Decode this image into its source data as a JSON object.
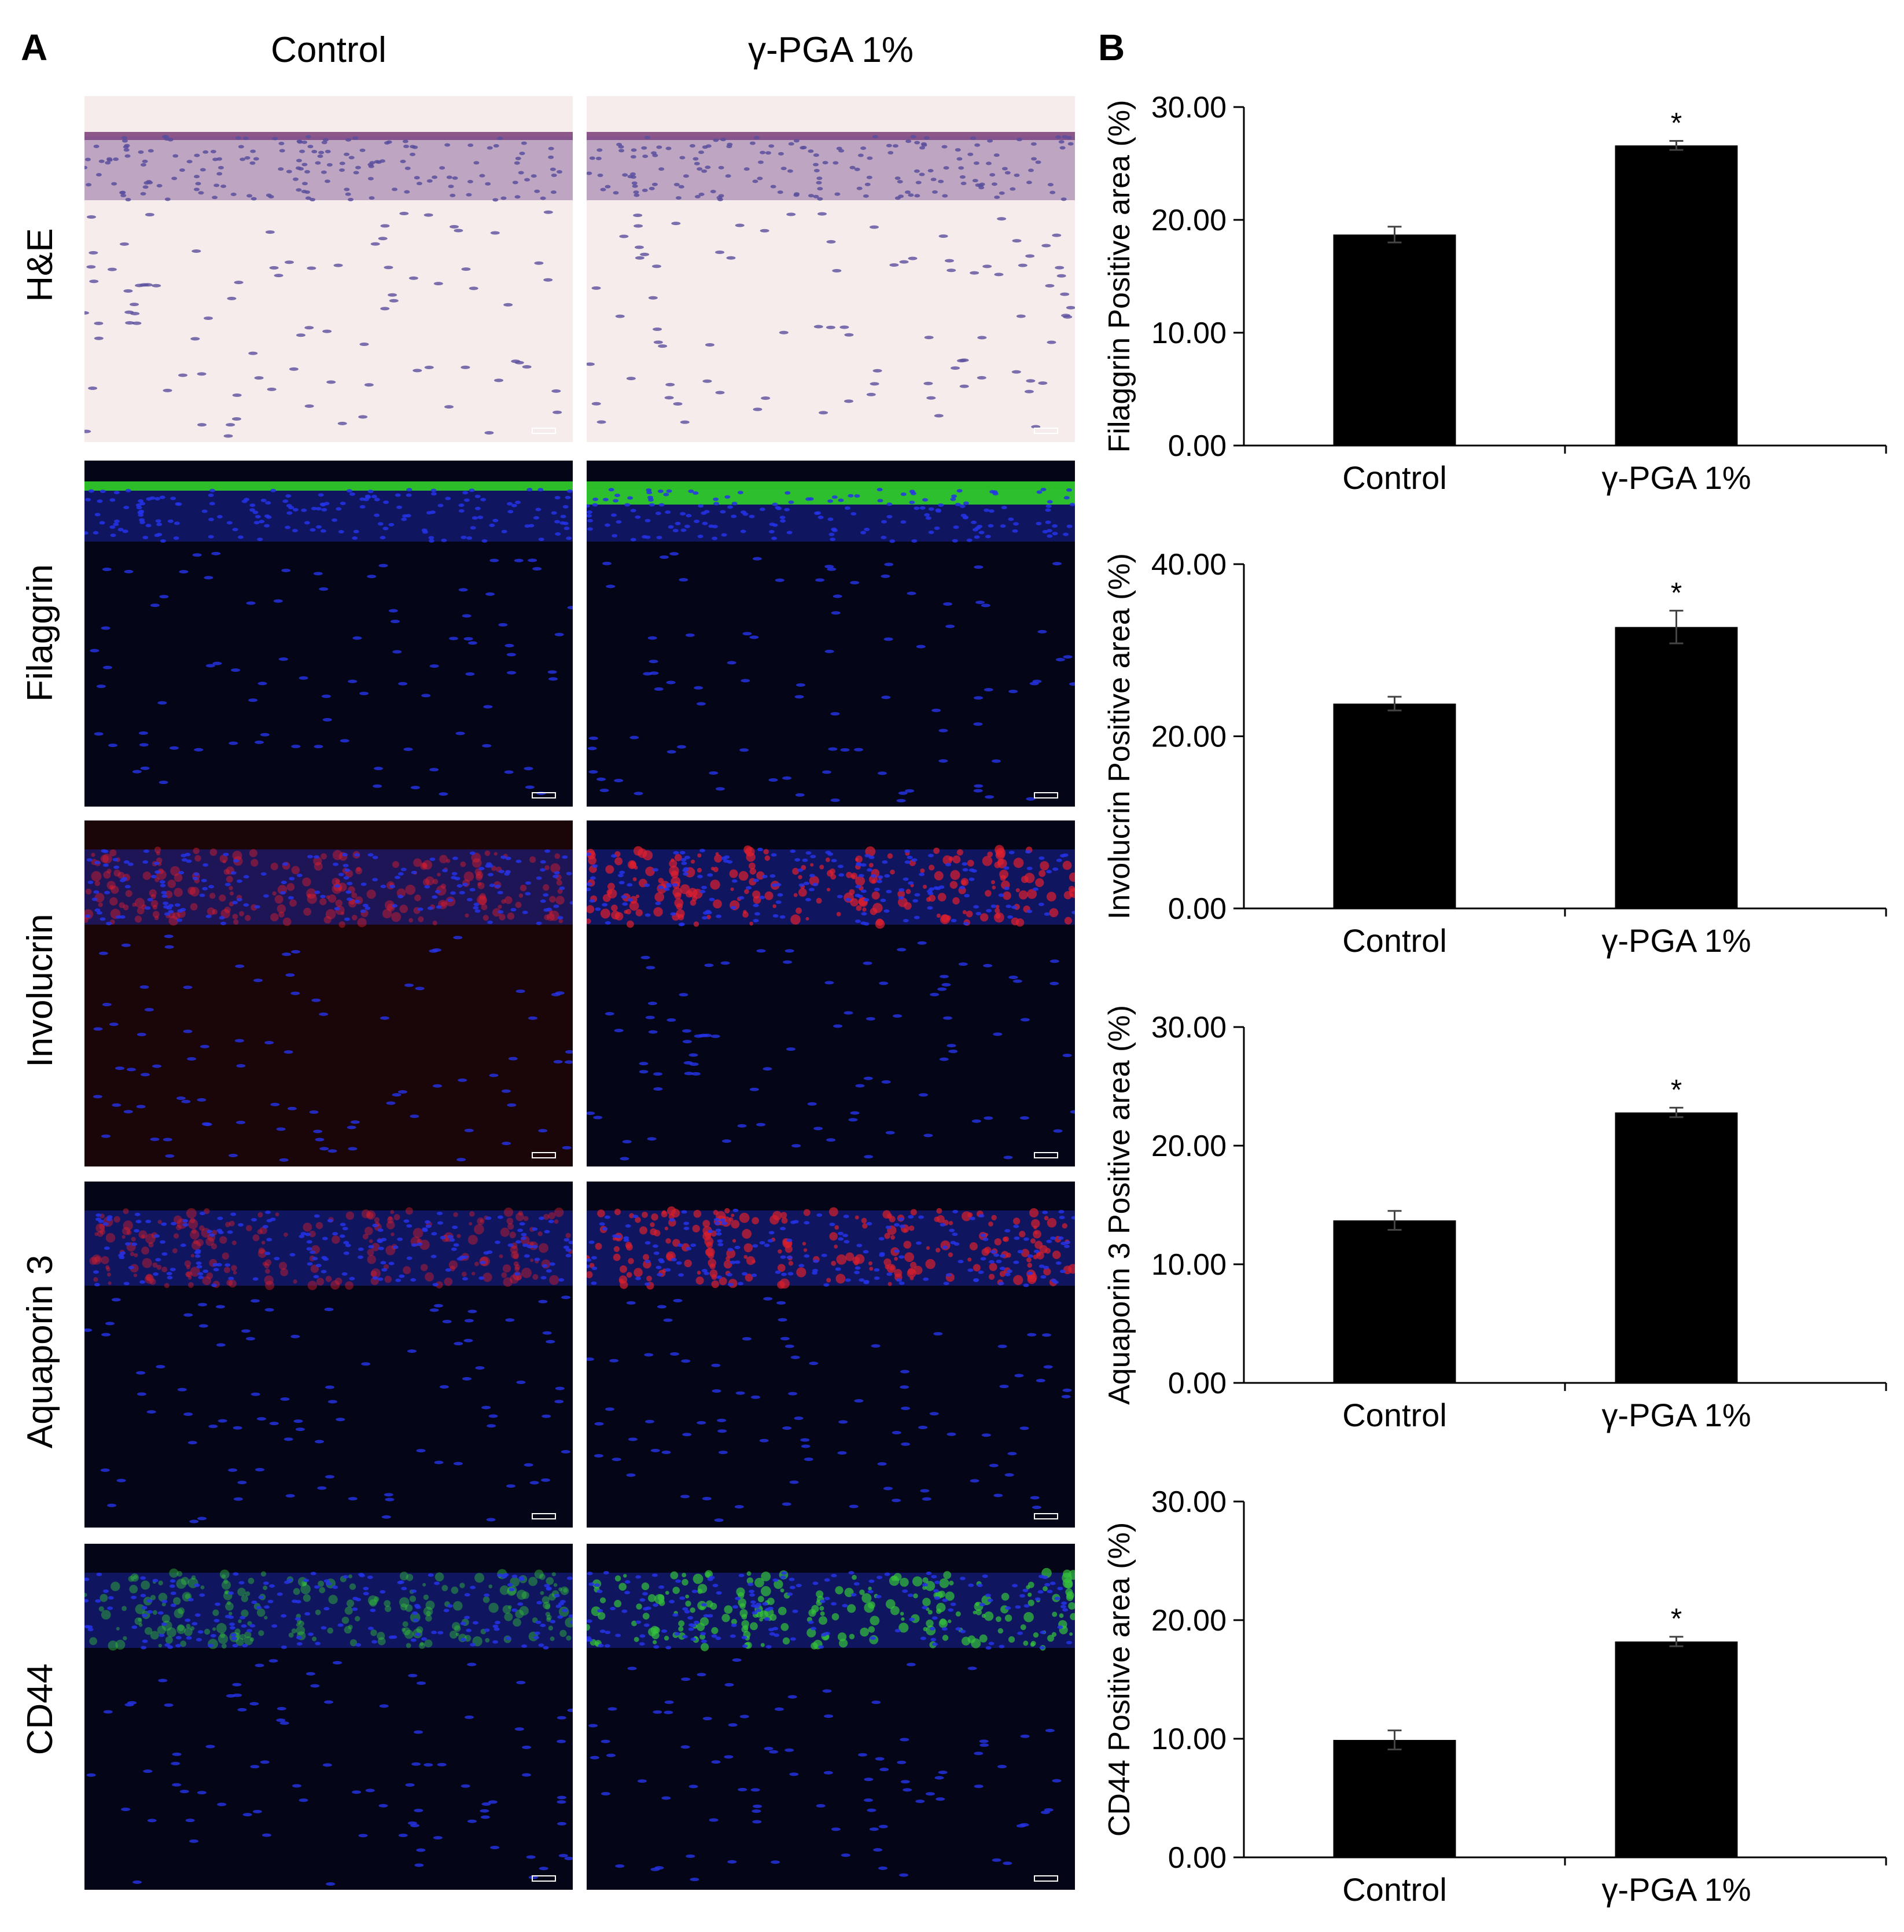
{
  "panels": {
    "a_label": "A",
    "b_label": "B"
  },
  "columns": [
    "Control",
    "γ-PGA 1%"
  ],
  "rows": [
    "H&E",
    "Filaggrin",
    "Involucrin",
    "Aquaporin 3",
    "CD44"
  ],
  "stain_colors": {
    "he_background": "#f6ecec",
    "he_nuclei": "#5b4f9e",
    "he_epidermis": "#7a5290",
    "fluor_background": "#050518",
    "dapi": "#2533e8",
    "filaggrin": "#32d22a",
    "involucrin": "#e0202e",
    "aquaporin3": "#d8202c",
    "cd44": "#34c23a"
  },
  "chart_data": [
    {
      "type": "bar",
      "categories": [
        "Control",
        "γ-PGA 1%"
      ],
      "values": [
        18.7,
        26.6
      ],
      "errors": [
        0.7,
        0.4
      ],
      "significance": [
        "",
        "*"
      ],
      "ylabel": "Filaggrin Positive area (%)",
      "ylim": [
        0,
        30
      ],
      "yticks": [
        "0.00",
        "10.00",
        "20.00",
        "30.00"
      ],
      "bar_color": "#000000"
    },
    {
      "type": "bar",
      "categories": [
        "Control",
        "γ-PGA 1%"
      ],
      "values": [
        23.8,
        32.7
      ],
      "errors": [
        0.8,
        1.9
      ],
      "significance": [
        "",
        "*"
      ],
      "ylabel": "Involucrin Positive area (%)",
      "ylim": [
        0,
        40
      ],
      "yticks": [
        "0.00",
        "20.00",
        "40.00"
      ],
      "bar_color": "#000000"
    },
    {
      "type": "bar",
      "categories": [
        "Control",
        "γ-PGA 1%"
      ],
      "values": [
        13.7,
        22.8
      ],
      "errors": [
        0.8,
        0.4
      ],
      "significance": [
        "",
        "*"
      ],
      "ylabel": "Aquaporin 3 Positive area (%)",
      "ylim": [
        0,
        30
      ],
      "yticks": [
        "0.00",
        "10.00",
        "20.00",
        "30.00"
      ],
      "bar_color": "#000000"
    },
    {
      "type": "bar",
      "categories": [
        "Control",
        "γ-PGA 1%"
      ],
      "values": [
        9.9,
        18.2
      ],
      "errors": [
        0.8,
        0.4
      ],
      "significance": [
        "",
        "*"
      ],
      "ylabel": "CD44 Positive area (%)",
      "ylim": [
        0,
        30
      ],
      "yticks": [
        "0.00",
        "10.00",
        "20.00",
        "30.00"
      ],
      "bar_color": "#000000"
    }
  ]
}
